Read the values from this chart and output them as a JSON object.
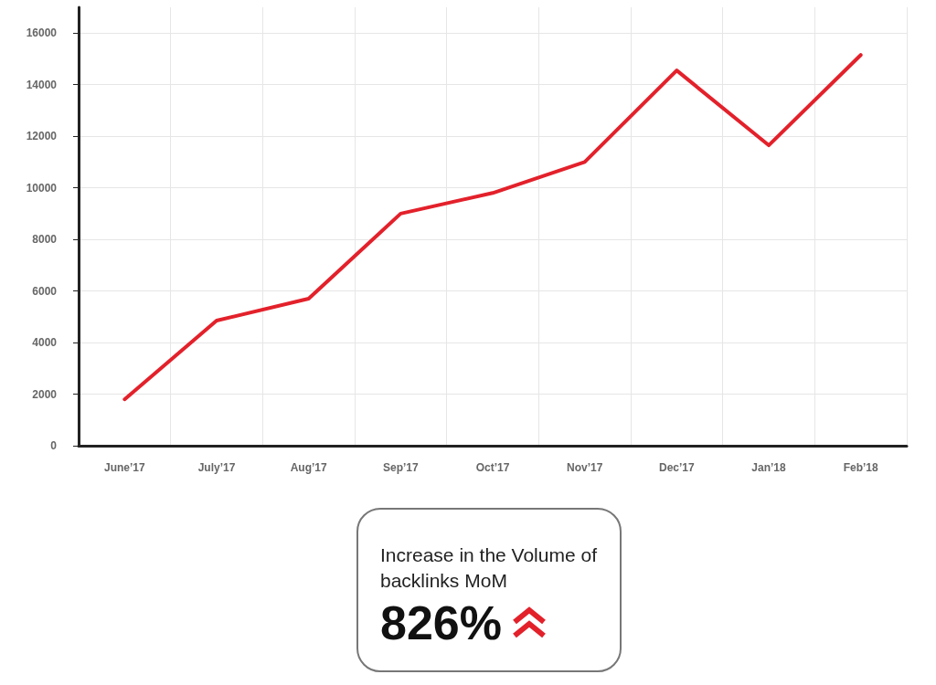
{
  "chart_data": {
    "type": "line",
    "categories": [
      "June’17",
      "July’17",
      "Aug’17",
      "Sep’17",
      "Oct’17",
      "Nov’17",
      "Dec’17",
      "Jan’18",
      "Feb’18"
    ],
    "series": [
      {
        "color": "#e3212b",
        "values": [
          1800,
          4850,
          5700,
          9000,
          9800,
          11000,
          14550,
          11650,
          15150
        ]
      }
    ],
    "ylim": [
      0,
      17000
    ],
    "yticks": [
      0,
      2000,
      4000,
      6000,
      8000,
      10000,
      12000,
      14000,
      16000
    ],
    "grid": true,
    "marker": "none",
    "line_style": "solid",
    "annotations": [
      "Increase in the Volume of backlinks MoM",
      "826%"
    ]
  }
}
